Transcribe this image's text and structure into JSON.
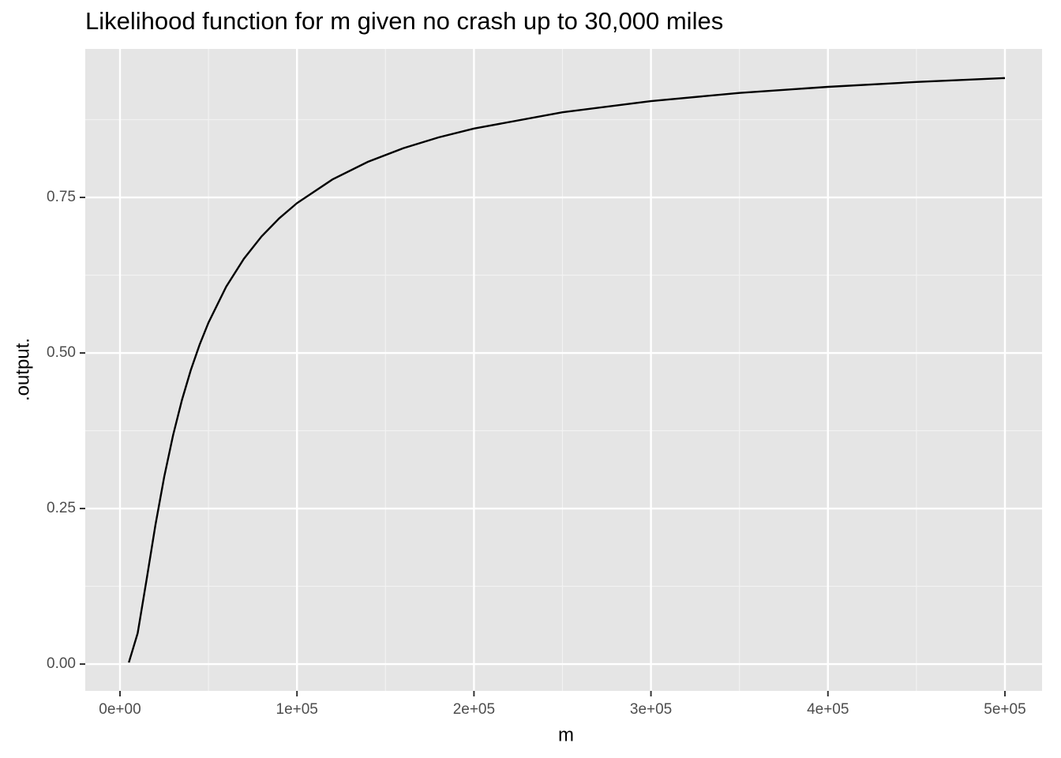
{
  "chart_data": {
    "type": "line",
    "title": "Likelihood function for m given no crash up to 30,000 miles",
    "x_label": "m",
    "y_label": ".output.",
    "x": [
      5000,
      10000,
      15000,
      20000,
      25000,
      30000,
      35000,
      40000,
      45000,
      50000,
      60000,
      70000,
      80000,
      90000,
      100000,
      120000,
      140000,
      160000,
      180000,
      200000,
      250000,
      300000,
      350000,
      400000,
      450000,
      500000
    ],
    "series": [
      {
        "name": ".output.",
        "color": "#000000",
        "values": [
          0.0025,
          0.0498,
          0.1353,
          0.2231,
          0.3012,
          0.3679,
          0.4244,
          0.4724,
          0.5134,
          0.5488,
          0.6065,
          0.6514,
          0.6873,
          0.7165,
          0.7408,
          0.7788,
          0.8071,
          0.829,
          0.8465,
          0.8607,
          0.8869,
          0.9048,
          0.9179,
          0.9277,
          0.9355,
          0.9418
        ]
      }
    ],
    "xlim": [
      -19625,
      520975
    ],
    "ylim": [
      -0.0431,
      0.9886
    ],
    "xticks": [
      {
        "value": 0,
        "label": "0e+00"
      },
      {
        "value": 100000,
        "label": "1e+05"
      },
      {
        "value": 200000,
        "label": "2e+05"
      },
      {
        "value": 300000,
        "label": "3e+05"
      },
      {
        "value": 400000,
        "label": "4e+05"
      },
      {
        "value": 500000,
        "label": "5e+05"
      }
    ],
    "yticks": [
      {
        "value": 0,
        "label": "0.00"
      },
      0.25,
      {
        "value": 0.5,
        "label": "0.50"
      },
      0.75
    ],
    "xminor": [
      50000,
      150000,
      250000,
      350000,
      450000
    ],
    "yminor": [
      0.125,
      0.375,
      0.625,
      0.875
    ],
    "grid": true
  }
}
